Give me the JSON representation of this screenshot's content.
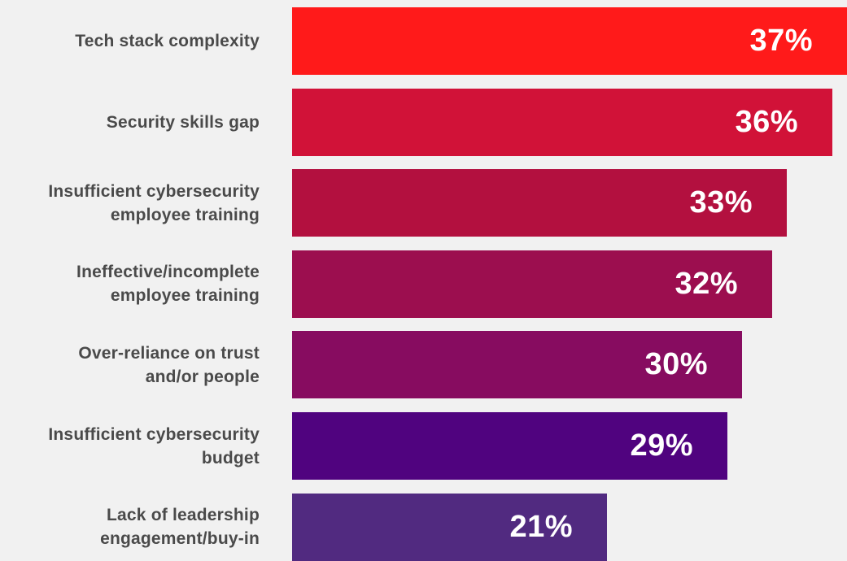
{
  "chart_data": {
    "type": "bar",
    "orientation": "horizontal",
    "categories": [
      "Tech stack complexity",
      "Security skills gap",
      "Insufficient cybersecurity\nemployee training",
      "Ineffective/incomplete\nemployee training",
      "Over-reliance on trust\nand/or people",
      "Insufficient cybersecurity\nbudget",
      "Lack of leadership\nengagement/buy-in"
    ],
    "values": [
      37,
      36,
      33,
      32,
      30,
      29,
      21
    ],
    "value_labels": [
      "37%",
      "36%",
      "33%",
      "32%",
      "30%",
      "29%",
      "21%"
    ],
    "colors": [
      "#ff1a1a",
      "#d11238",
      "#b3103f",
      "#9c0e4f",
      "#870c60",
      "#50037f",
      "#512a80"
    ],
    "xlim": [
      0,
      37
    ],
    "title": "",
    "xlabel": "",
    "ylabel": "",
    "grid": false,
    "legend": "none"
  }
}
